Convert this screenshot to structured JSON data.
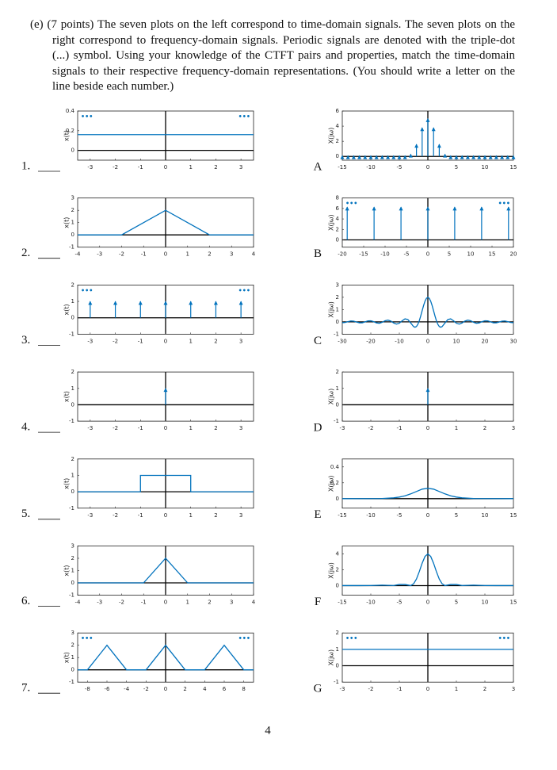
{
  "question": {
    "label": "(e)",
    "text": "(7 points) The seven plots on the left correspond to time-domain signals. The seven plots on the right correspond to frequency-domain signals. Periodic signals are denoted with the triple-dot (...) symbol. Using your knowledge of the CTFT pairs and properties, match the time-domain signals to their respective frequency-domain representations. (You should write a letter on the line beside each number.)"
  },
  "page_number": "4",
  "left": [
    {
      "label": "1.",
      "ylabel": "x(t)",
      "xlim": [
        -3.5,
        3.5
      ],
      "xticks": [
        -3,
        -2,
        -1,
        0,
        1,
        2,
        3
      ],
      "ylim": [
        -0.1,
        0.4
      ],
      "yticks": [
        0,
        0.2,
        0.4
      ],
      "lines": [
        {
          "x": [
            -3.5,
            3.5
          ],
          "y": [
            0.16,
            0.16
          ]
        }
      ],
      "dots": [
        "•••",
        "•••"
      ]
    },
    {
      "label": "2.",
      "ylabel": "x(t)",
      "xlim": [
        -4,
        4
      ],
      "xticks": [
        -4,
        -3,
        -2,
        -1,
        0,
        1,
        2,
        3,
        4
      ],
      "ylim": [
        -1,
        3
      ],
      "yticks": [
        -1,
        0,
        1,
        2,
        3
      ],
      "lines": [
        {
          "x": [
            -4,
            -2,
            0,
            2,
            4
          ],
          "y": [
            0,
            0,
            2,
            0,
            0
          ]
        }
      ]
    },
    {
      "label": "3.",
      "ylabel": "x(t)",
      "xlim": [
        -3.5,
        3.5
      ],
      "xticks": [
        -3,
        -2,
        -1,
        0,
        1,
        2,
        3
      ],
      "ylim": [
        -1,
        2
      ],
      "yticks": [
        -1,
        0,
        1,
        2
      ],
      "impulses": {
        "x": [
          -3,
          -2,
          -1,
          0,
          1,
          2,
          3
        ],
        "heights": [
          1,
          1,
          1,
          1,
          1,
          1,
          1
        ]
      },
      "dots": [
        "•••",
        "•••"
      ]
    },
    {
      "label": "4.",
      "ylabel": "x(t)",
      "xlim": [
        -3.5,
        3.5
      ],
      "xticks": [
        -3,
        -2,
        -1,
        0,
        1,
        2,
        3
      ],
      "ylim": [
        -1,
        2
      ],
      "yticks": [
        -1,
        0,
        1,
        2
      ],
      "impulses": {
        "x": [
          0
        ],
        "heights": [
          1
        ]
      }
    },
    {
      "label": "5.",
      "ylabel": "x(t)",
      "xlim": [
        -3.5,
        3.5
      ],
      "xticks": [
        -3,
        -2,
        -1,
        0,
        1,
        2,
        3
      ],
      "ylim": [
        -1,
        2
      ],
      "yticks": [
        -1,
        0,
        1,
        2
      ],
      "lines": [
        {
          "x": [
            -3.5,
            -1,
            -1,
            1,
            1,
            3.5
          ],
          "y": [
            0,
            0,
            1,
            1,
            0,
            0
          ]
        }
      ]
    },
    {
      "label": "6.",
      "ylabel": "x(t)",
      "xlim": [
        -4,
        4
      ],
      "xticks": [
        -4,
        -3,
        -2,
        -1,
        0,
        1,
        2,
        3,
        4
      ],
      "ylim": [
        -1,
        3
      ],
      "yticks": [
        -1,
        0,
        1,
        2,
        3
      ],
      "lines": [
        {
          "x": [
            -4,
            -1,
            0,
            1,
            4
          ],
          "y": [
            0,
            0,
            2,
            0,
            0
          ]
        }
      ]
    },
    {
      "label": "7.",
      "ylabel": "x(t)",
      "xlim": [
        -9,
        9
      ],
      "xticks": [
        -8,
        -6,
        -4,
        -2,
        0,
        2,
        4,
        6,
        8
      ],
      "ylim": [
        -1,
        3
      ],
      "yticks": [
        -1,
        0,
        1,
        2,
        3
      ],
      "lines": [
        {
          "x": [
            -9,
            -8,
            -6,
            -4,
            -2,
            0,
            2,
            4,
            6,
            8,
            9
          ],
          "y": [
            0,
            0,
            2,
            0,
            0,
            2,
            0,
            0,
            2,
            0,
            0
          ]
        }
      ],
      "dots": [
        "•••",
        "•••"
      ]
    }
  ],
  "right": [
    {
      "label": "A",
      "ylabel": "X(jω)",
      "xlim": [
        -15,
        15
      ],
      "xticks": [
        -15,
        -10,
        -5,
        0,
        5,
        10,
        15
      ],
      "ylim": [
        -0.5,
        6
      ],
      "yticks": [
        0,
        2,
        4,
        6
      ],
      "impulses": {
        "x": [
          -15,
          -14,
          -13,
          -12,
          -11,
          -10,
          -9,
          -8,
          -7,
          -6,
          -5,
          -4,
          -3,
          -2,
          -1,
          0,
          1,
          2,
          3,
          4,
          5,
          6,
          7,
          8,
          9,
          10,
          11,
          12,
          13,
          14,
          15
        ],
        "heights": [
          0.1,
          0.1,
          0.1,
          0.1,
          0.1,
          0.1,
          0.1,
          0.1,
          0.1,
          0.1,
          0.1,
          0.1,
          0.3,
          1.6,
          3.8,
          5,
          3.8,
          1.6,
          0.3,
          0.1,
          0.1,
          0.1,
          0.1,
          0.1,
          0.1,
          0.1,
          0.1,
          0.1,
          0.1,
          0.1,
          0.1
        ]
      }
    },
    {
      "label": "B",
      "ylabel": "X(jω)",
      "xlim": [
        -20,
        20
      ],
      "xticks": [
        -20,
        -15,
        -10,
        -5,
        0,
        5,
        10,
        15,
        20
      ],
      "ylim": [
        -1.4,
        8
      ],
      "yticks": [
        0,
        2,
        4,
        6,
        8
      ],
      "impulses": {
        "x": [
          -18.85,
          -12.57,
          -6.28,
          0,
          6.28,
          12.57,
          18.85
        ],
        "heights": [
          6.28,
          6.28,
          6.28,
          6.28,
          6.28,
          6.28,
          6.28
        ]
      },
      "dots": [
        "•••",
        "•••"
      ]
    },
    {
      "label": "C",
      "ylabel": "X(jω)",
      "xlim": [
        -30,
        30
      ],
      "xticks": [
        -30,
        -20,
        -10,
        0,
        10,
        20,
        30
      ],
      "ylim": [
        -1,
        3
      ],
      "yticks": [
        -1,
        0,
        1,
        2,
        3
      ],
      "lines": [
        {
          "x": [
            -30,
            -29,
            -28,
            -27,
            -26,
            -25,
            -24,
            -23,
            -22,
            -21,
            -20,
            -19,
            -18,
            -17,
            -16,
            -15,
            -14,
            -13,
            -12,
            -11,
            -10,
            -9,
            -8,
            -7,
            -6,
            -5,
            -4.5,
            -4,
            -3.5,
            -3,
            -2.5,
            -2,
            -1.5,
            -1,
            -0.5,
            0,
            0.5,
            1,
            1.5,
            2,
            2.5,
            3,
            3.5,
            4,
            4.5,
            5,
            6,
            7,
            8,
            9,
            10,
            11,
            12,
            13,
            14,
            15,
            16,
            17,
            18,
            19,
            20,
            21,
            22,
            23,
            24,
            25,
            26,
            27,
            28,
            29,
            30
          ],
          "y": [
            -0.066,
            -0.046,
            0.019,
            0.071,
            0.059,
            -0.011,
            -0.075,
            -0.074,
            -0.001,
            0.08,
            0.091,
            0.016,
            -0.083,
            -0.113,
            -0.036,
            0.087,
            0.142,
            0.065,
            -0.089,
            -0.182,
            -0.109,
            0.092,
            0.247,
            0.188,
            -0.093,
            -0.384,
            -0.434,
            -0.378,
            -0.2,
            0.094,
            0.479,
            0.909,
            1.33,
            1.683,
            1.918,
            2,
            1.918,
            1.683,
            1.33,
            0.909,
            0.479,
            0.094,
            -0.2,
            -0.378,
            -0.434,
            -0.384,
            -0.093,
            0.188,
            0.247,
            0.092,
            -0.109,
            -0.182,
            -0.089,
            0.065,
            0.142,
            0.087,
            -0.036,
            -0.113,
            -0.083,
            0.016,
            0.091,
            0.08,
            -0.001,
            -0.074,
            -0.075,
            -0.011,
            0.059,
            0.071,
            0.019,
            -0.046,
            -0.066
          ]
        }
      ]
    },
    {
      "label": "D",
      "ylabel": "X(jω)",
      "xlim": [
        -3,
        3
      ],
      "xticks": [
        -3,
        -2,
        -1,
        0,
        1,
        2,
        3
      ],
      "ylim": [
        -1,
        2
      ],
      "yticks": [
        -1,
        0,
        1,
        2
      ],
      "impulses": {
        "x": [
          0
        ],
        "heights": [
          1
        ]
      }
    },
    {
      "label": "E",
      "ylabel": "X(jω)",
      "xlim": [
        -15,
        15
      ],
      "xticks": [
        -15,
        -10,
        -5,
        0,
        5,
        10,
        15
      ],
      "ylim": [
        -0.12,
        0.5
      ],
      "yticks": [
        0,
        0.2,
        0.4
      ],
      "lines": [
        {
          "x": [
            -15,
            -8,
            -6,
            -5,
            -4,
            -3,
            -2,
            -1,
            0,
            1,
            2,
            3,
            4,
            5,
            6,
            8,
            15
          ],
          "y": [
            0,
            0.002,
            0.01,
            0.02,
            0.035,
            0.06,
            0.09,
            0.12,
            0.13,
            0.12,
            0.09,
            0.06,
            0.035,
            0.02,
            0.01,
            0.002,
            0
          ]
        }
      ]
    },
    {
      "label": "F",
      "ylabel": "X(jω)",
      "xlim": [
        -15,
        15
      ],
      "xticks": [
        -15,
        -10,
        -5,
        0,
        5,
        10,
        15
      ],
      "ylim": [
        -1.2,
        5
      ],
      "yticks": [
        0,
        2,
        4
      ],
      "lines": [
        {
          "x": [
            -15,
            -12,
            -10,
            -8,
            -7,
            -6,
            -5,
            -4,
            -3,
            -2.5,
            -2,
            -1.5,
            -1,
            -0.5,
            0,
            0.5,
            1,
            1.5,
            2,
            2.5,
            3,
            4,
            5,
            6,
            7,
            8,
            10,
            12,
            15
          ],
          "y": [
            0.008,
            0.008,
            0.012,
            0.061,
            0.035,
            0.009,
            0.147,
            0.143,
            0.009,
            0.229,
            0.827,
            1.77,
            2.83,
            3.68,
            4,
            3.68,
            2.83,
            1.77,
            0.827,
            0.229,
            0.009,
            0.143,
            0.147,
            0.009,
            0.035,
            0.061,
            0.012,
            0.008,
            0.008
          ]
        }
      ]
    },
    {
      "label": "G",
      "ylabel": "X(jω)",
      "xlim": [
        -3,
        3
      ],
      "xticks": [
        -3,
        -2,
        -1,
        0,
        1,
        2,
        3
      ],
      "ylim": [
        -1,
        2
      ],
      "yticks": [
        -1,
        0,
        1,
        2
      ],
      "lines": [
        {
          "x": [
            -3,
            3
          ],
          "y": [
            1,
            1
          ]
        }
      ],
      "dots": [
        "•••",
        "•••"
      ]
    }
  ]
}
